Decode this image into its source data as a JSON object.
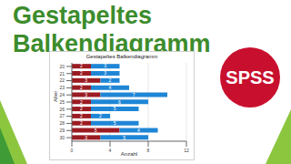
{
  "header": {
    "title": "Gestapeltes Balkendiagramm"
  },
  "logo": {
    "text": "SPSS"
  },
  "chart_data": {
    "type": "bar",
    "title": "Gestapeltes Balkendiagramm",
    "orientation": "horizontal",
    "stacked": true,
    "data_labels": true,
    "grid": true,
    "xlabel": "Anzahl",
    "ylabel": "Alter",
    "categories": [
      "20",
      "21",
      "22",
      "23",
      "24",
      "25",
      "26",
      "27",
      "28",
      "29",
      "30"
    ],
    "series": [
      {
        "color": "#9b1b22",
        "values": [
          2,
          2,
          3,
          2,
          3,
          2,
          2,
          2,
          2,
          5,
          3
        ]
      },
      {
        "color": "#1f86d6",
        "values": [
          3,
          3,
          2,
          4,
          7,
          6,
          5,
          2,
          5,
          4,
          5
        ]
      }
    ],
    "xlim": [
      0,
      12
    ],
    "xticks": [
      0,
      4,
      8,
      12
    ]
  }
}
